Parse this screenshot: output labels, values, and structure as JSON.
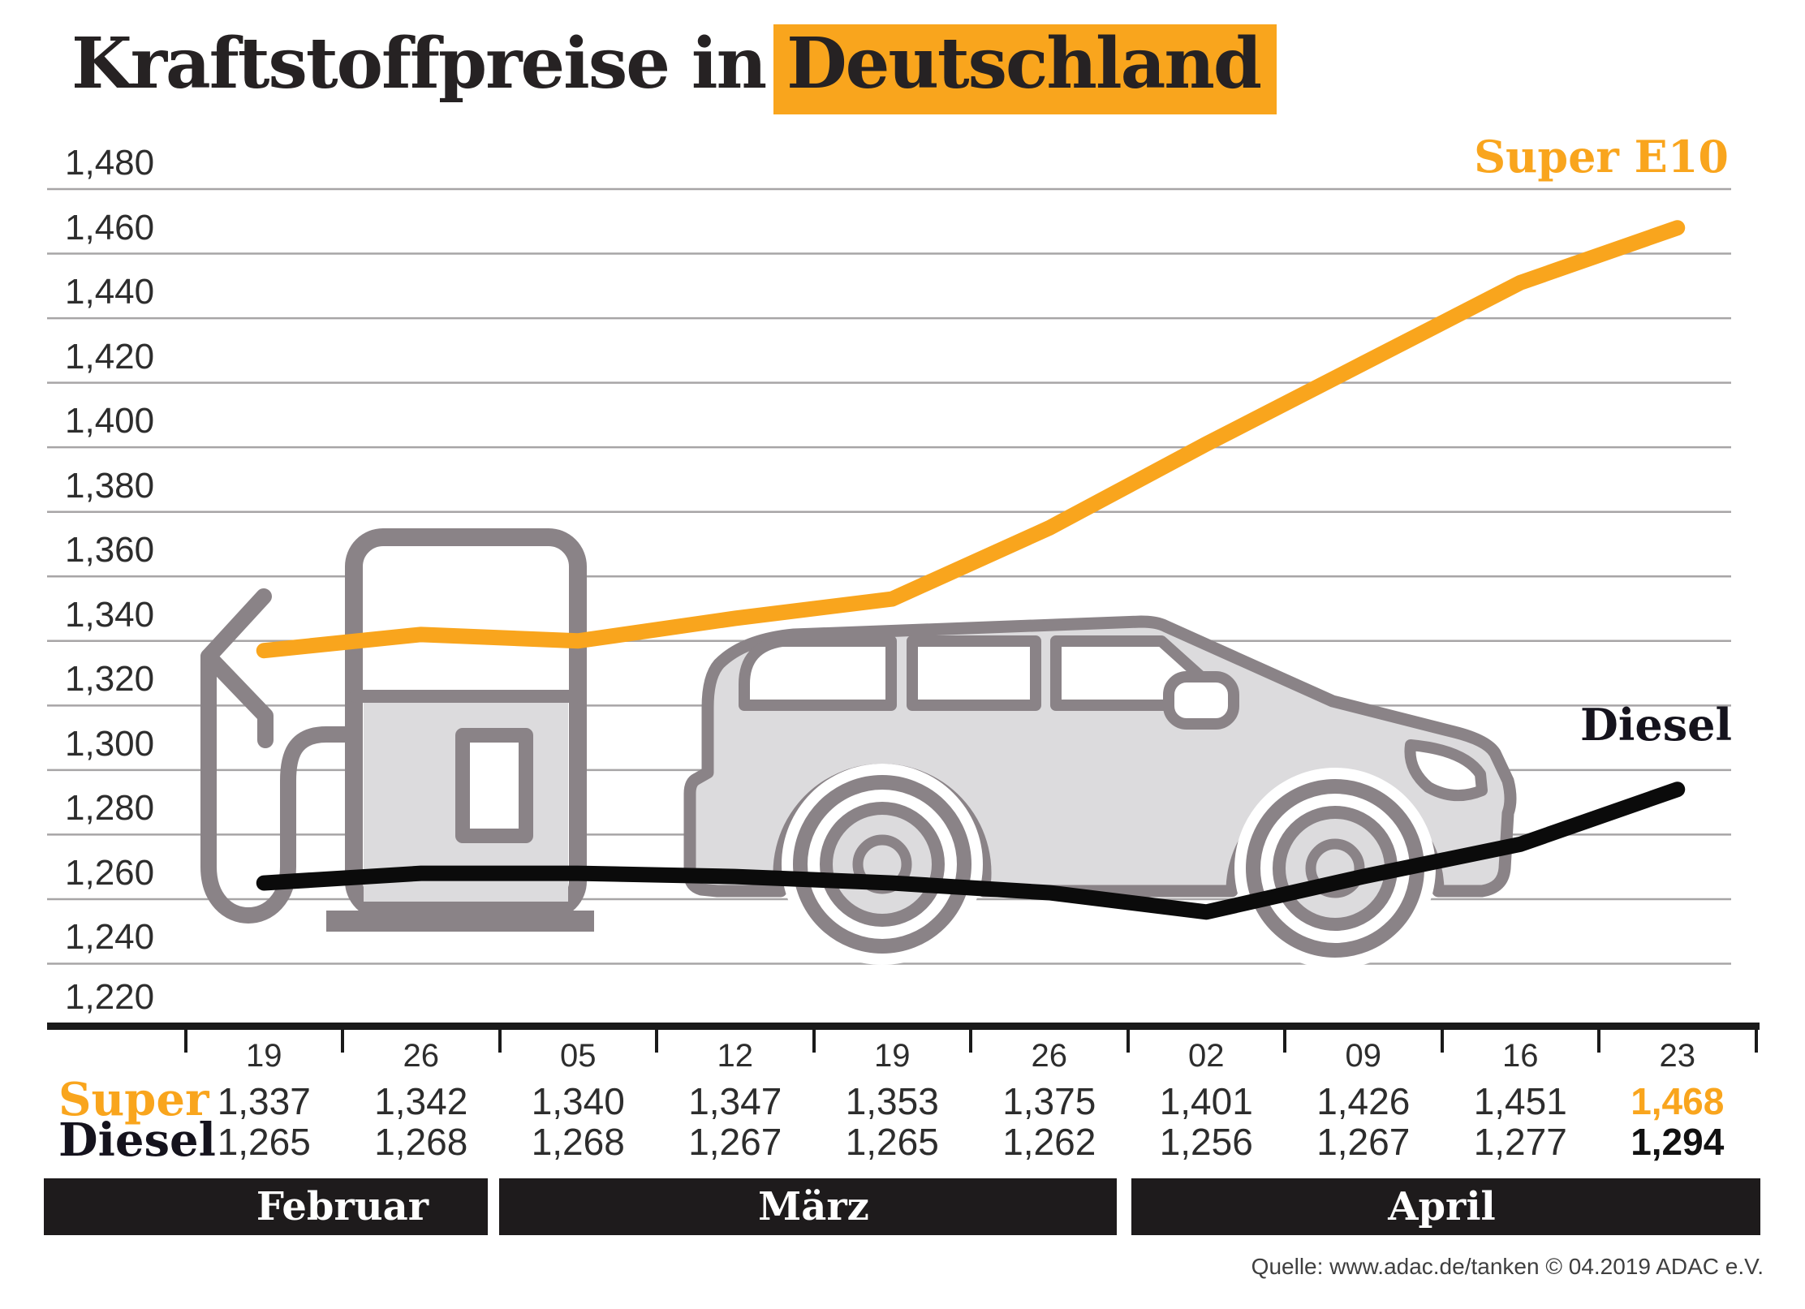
{
  "title": {
    "prefix": "Kraftstoffpreise in",
    "highlight": "Deutschland"
  },
  "chart_data": {
    "type": "line",
    "title": "Kraftstoffpreise in Deutschland",
    "x": [
      "19",
      "26",
      "05",
      "12",
      "19",
      "26",
      "02",
      "09",
      "16",
      "23"
    ],
    "months": [
      {
        "label": "Februar",
        "from_col": 0,
        "to_col": 2
      },
      {
        "label": "März",
        "from_col": 2,
        "to_col": 6
      },
      {
        "label": "April",
        "from_col": 6,
        "to_col": 10
      }
    ],
    "series": [
      {
        "name": "Super E10",
        "color": "#F9A51D",
        "values": [
          1.337,
          1.342,
          1.34,
          1.347,
          1.353,
          1.375,
          1.401,
          1.426,
          1.451,
          1.468
        ]
      },
      {
        "name": "Diesel",
        "color": "#0B0B0B",
        "values": [
          1.265,
          1.268,
          1.268,
          1.267,
          1.265,
          1.262,
          1.256,
          1.267,
          1.277,
          1.294
        ]
      }
    ],
    "ylim": [
      1.22,
      1.48
    ],
    "y_tick_step": 0.02,
    "grid": true,
    "decimal_separator": ",",
    "legend_position": "labels-at-line-ends"
  },
  "table": {
    "super_label": "Super",
    "diesel_label": "Diesel"
  },
  "source": "Quelle: www.adac.de/tanken   © 04.2019  ADAC e.V.",
  "colors": {
    "accent": "#F9A51D",
    "diesel_text": "#15131D",
    "grid": "#A7A5A6",
    "axis": "#1A1A1A",
    "month_bar": "#1E1B1C",
    "illustration_outline": "#8A8387",
    "illustration_fill": "#DCDBDD"
  }
}
